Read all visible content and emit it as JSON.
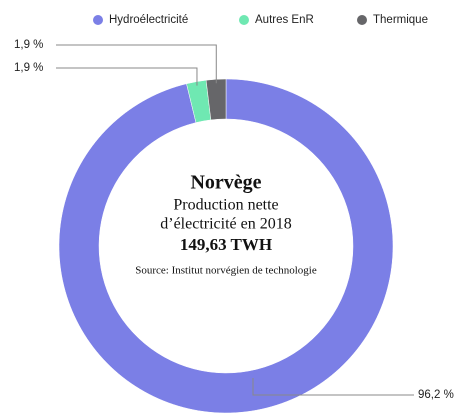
{
  "chart_data": {
    "type": "donut",
    "title": "Norvège",
    "subtitle": [
      "Production nette",
      "d’électricité en 2018"
    ],
    "total_label": "149,63 TWH",
    "source": "Source: Institut norvégien de technologie",
    "categories": [
      "Hydroélectricité",
      "Autres EnR",
      "Thermique"
    ],
    "values": [
      96.2,
      1.9,
      1.9
    ],
    "value_labels": [
      "96,2 %",
      "1,9 %",
      "1,9 %"
    ],
    "colors": [
      "#7b7fe6",
      "#6fe8b2",
      "#666669"
    ],
    "legend": "top"
  }
}
